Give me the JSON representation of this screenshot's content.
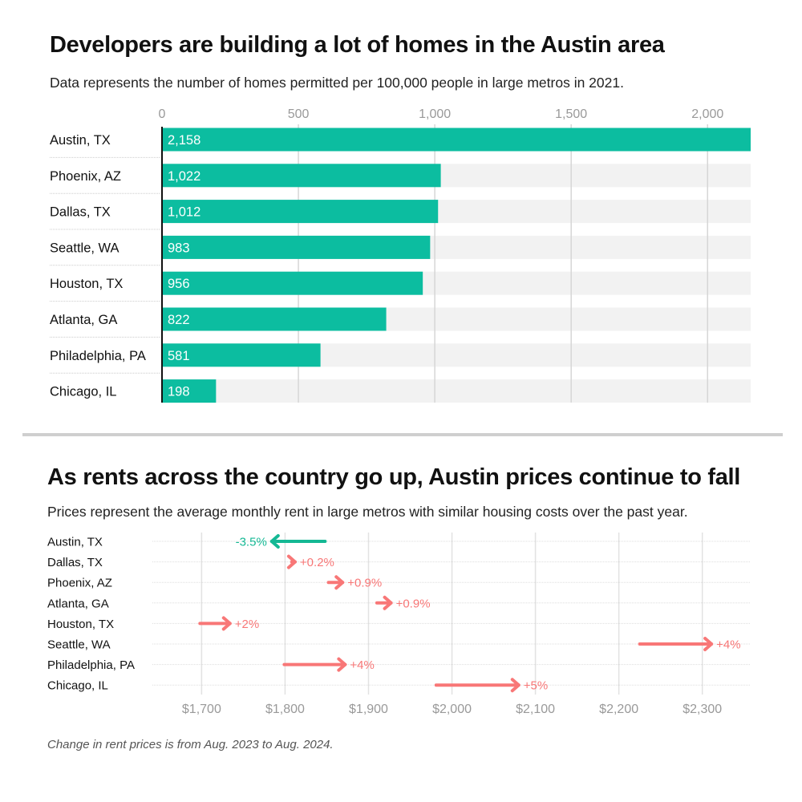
{
  "chart_data": [
    {
      "type": "bar",
      "orientation": "horizontal",
      "title": "Developers are building a lot of homes in the Austin area",
      "subtitle": "Data represents the number of homes permitted per 100,000 people in large metros in 2021.",
      "categories": [
        "Austin, TX",
        "Phoenix, AZ",
        "Dallas, TX",
        "Seattle, WA",
        "Houston, TX",
        "Atlanta, GA",
        "Philadelphia, PA",
        "Chicago, IL"
      ],
      "values": [
        2158,
        1022,
        1012,
        983,
        956,
        822,
        581,
        198
      ],
      "value_labels": [
        "2,158",
        "1,022",
        "1,012",
        "983",
        "956",
        "822",
        "581",
        "198"
      ],
      "xlim": [
        0,
        2158
      ],
      "ticks": [
        0,
        500,
        1000,
        1500,
        2000
      ],
      "tick_labels": [
        "0",
        "500",
        "1,000",
        "1,500",
        "2,000"
      ],
      "axis_position": "top",
      "grid": true,
      "colors": {
        "bar": "#0cbda0",
        "track": "#f2f2f2"
      }
    },
    {
      "type": "arrow",
      "title": "As rents across the country go up, Austin prices continue to fall",
      "subtitle": "Prices represent the average monthly rent in large metros with similar housing costs over the past year.",
      "note": "Change in rent prices is from Aug. 2023 to Aug. 2024.",
      "categories": [
        "Austin, TX",
        "Dallas, TX",
        "Phoenix, AZ",
        "Atlanta, GA",
        "Houston, TX",
        "Seattle, WA",
        "Philadelphia, PA",
        "Chicago, IL"
      ],
      "start": [
        1848,
        1808,
        1852,
        1910,
        1698,
        2225,
        1799,
        1981
      ],
      "end": [
        1784,
        1812,
        1869,
        1927,
        1734,
        2311,
        1872,
        2080
      ],
      "change_labels": [
        "-3.5%",
        "+0.2%",
        "+0.9%",
        "+0.9%",
        "+2%",
        "+4%",
        "+4%",
        "+5%"
      ],
      "xlim": [
        1641,
        2357
      ],
      "ticks": [
        1700,
        1800,
        1900,
        2000,
        2100,
        2200,
        2300
      ],
      "tick_labels": [
        "$1,700",
        "$1,800",
        "$1,900",
        "$2,000",
        "$2,100",
        "$2,200",
        "$2,300"
      ],
      "axis_position": "bottom",
      "grid": true,
      "colors": {
        "decrease": "#14b894",
        "increase": "#f87777"
      }
    }
  ]
}
